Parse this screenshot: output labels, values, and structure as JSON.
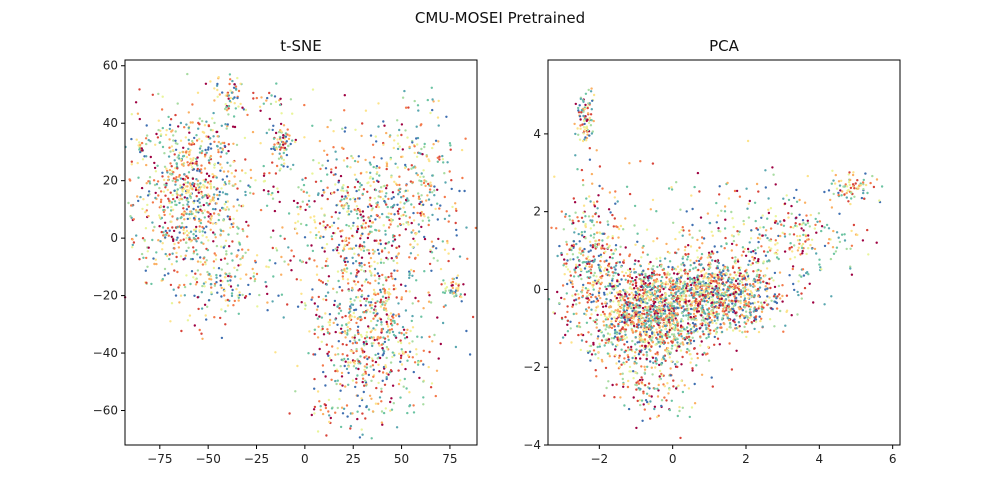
{
  "figure": {
    "suptitle": "CMU-MOSEI Pretrained"
  },
  "palette": [
    "#3f6fb1",
    "#5aa7b0",
    "#6cc4a3",
    "#a8dca2",
    "#e9f59a",
    "#fde38a",
    "#fbb063",
    "#f47a4b",
    "#d8443a",
    "#9e0142"
  ],
  "chart_data": [
    {
      "type": "scatter",
      "title": "t-SNE",
      "xlim": [
        -93,
        89
      ],
      "ylim": [
        -72,
        62
      ],
      "xticks": [
        -75,
        -50,
        -25,
        0,
        25,
        50,
        75
      ],
      "xtick_labels": [
        "−75",
        "−50",
        "−25",
        "0",
        "25",
        "50",
        "75"
      ],
      "yticks": [
        -60,
        -40,
        -20,
        0,
        20,
        40,
        60
      ],
      "ytick_labels": [
        "−60",
        "−40",
        "−20",
        "0",
        "20",
        "40",
        "60"
      ],
      "clusters": [
        {
          "cx": -58,
          "cy": 15,
          "sx": 15,
          "sy": 17,
          "n": 900
        },
        {
          "cx": 28,
          "cy": 5,
          "sx": 21,
          "sy": 17,
          "n": 700
        },
        {
          "cx": 35,
          "cy": -35,
          "sx": 16,
          "sy": 15,
          "n": 600
        },
        {
          "cx": -38,
          "cy": 50,
          "sx": 3,
          "sy": 4,
          "n": 45
        },
        {
          "cx": -12,
          "cy": 32,
          "sx": 3,
          "sy": 4,
          "n": 80
        },
        {
          "cx": 77,
          "cy": -18,
          "sx": 3,
          "sy": 2,
          "n": 40
        },
        {
          "cx": -85,
          "cy": 31,
          "sx": 0.8,
          "sy": 1.2,
          "n": 15
        },
        {
          "cx": -20,
          "cy": 48,
          "sx": 8,
          "sy": 2,
          "n": 20
        },
        {
          "cx": 15,
          "cy": -62,
          "sx": 8,
          "sy": 2,
          "n": 20
        },
        {
          "cx": 60,
          "cy": 20,
          "sx": 10,
          "sy": 15,
          "n": 150
        },
        {
          "cx": -40,
          "cy": -15,
          "sx": 12,
          "sy": 6,
          "n": 120
        }
      ]
    },
    {
      "type": "scatter",
      "title": "PCA",
      "xlim": [
        -3.4,
        6.2
      ],
      "ylim": [
        -4.0,
        5.9
      ],
      "xticks": [
        -2,
        0,
        2,
        4,
        6
      ],
      "xtick_labels": [
        "−2",
        "0",
        "2",
        "4",
        "6"
      ],
      "yticks": [
        -4,
        -2,
        0,
        2,
        4
      ],
      "ytick_labels": [
        "−4",
        "−2",
        "0",
        "2",
        "4"
      ],
      "clusters": [
        {
          "cx": -0.6,
          "cy": -0.6,
          "sx": 0.85,
          "sy": 0.7,
          "n": 1500
        },
        {
          "cx": 1.4,
          "cy": -0.1,
          "sx": 0.8,
          "sy": 0.45,
          "n": 900
        },
        {
          "cx": -2.2,
          "cy": 0.9,
          "sx": 0.5,
          "sy": 0.9,
          "n": 350
        },
        {
          "cx": 3.3,
          "cy": 1.2,
          "sx": 0.9,
          "sy": 0.6,
          "n": 250
        },
        {
          "cx": 4.9,
          "cy": 2.6,
          "sx": 0.35,
          "sy": 0.2,
          "n": 80
        },
        {
          "cx": -2.4,
          "cy": 4.4,
          "sx": 0.12,
          "sy": 0.35,
          "n": 90
        },
        {
          "cx": -0.5,
          "cy": -2.4,
          "sx": 0.6,
          "sy": 0.5,
          "n": 120
        },
        {
          "cx": 0.8,
          "cy": 1.8,
          "sx": 1.5,
          "sy": 0.8,
          "n": 90
        }
      ]
    }
  ]
}
